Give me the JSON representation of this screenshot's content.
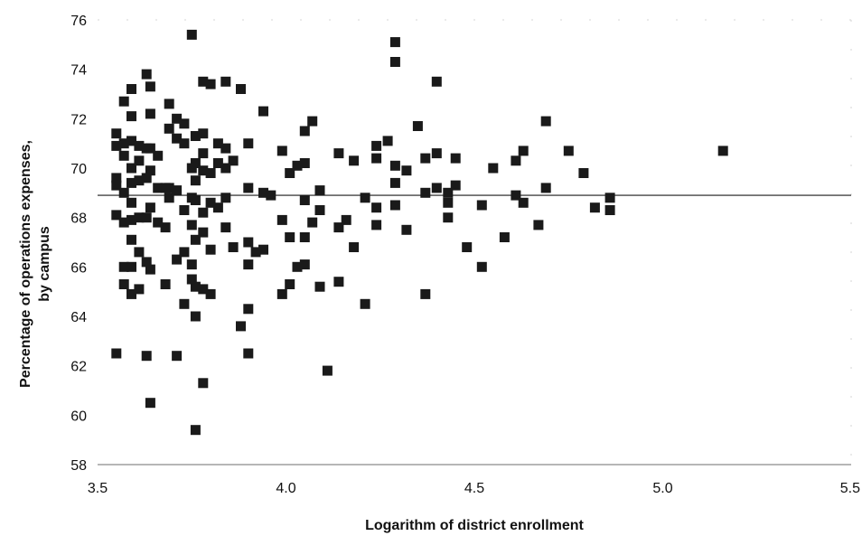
{
  "chart_data": {
    "type": "scatter",
    "title": "",
    "xlabel": "Logarithm of district enrollment",
    "ylabel_lines": [
      "Percentage of operations expenses,",
      "by campus"
    ],
    "xlim": [
      3.5,
      5.5
    ],
    "ylim": [
      58,
      76
    ],
    "x_ticks": [
      "3.5",
      "4.0",
      "4.5",
      "5.0",
      "5.5"
    ],
    "y_ticks": [
      "58",
      "60",
      "62",
      "64",
      "66",
      "68",
      "70",
      "72",
      "74",
      "76"
    ],
    "grid": false,
    "legend": "none",
    "marker_color": "#1a1a1a",
    "reference_line": {
      "y": 68.9,
      "color": "#1a1a1a"
    },
    "points": [
      [
        3.55,
        71.4
      ],
      [
        3.55,
        70.9
      ],
      [
        3.55,
        69.6
      ],
      [
        3.55,
        69.3
      ],
      [
        3.55,
        68.1
      ],
      [
        3.55,
        62.5
      ],
      [
        3.57,
        72.7
      ],
      [
        3.57,
        71.0
      ],
      [
        3.57,
        70.5
      ],
      [
        3.57,
        69.0
      ],
      [
        3.57,
        67.8
      ],
      [
        3.57,
        66.0
      ],
      [
        3.57,
        65.3
      ],
      [
        3.59,
        73.2
      ],
      [
        3.59,
        72.1
      ],
      [
        3.59,
        71.1
      ],
      [
        3.59,
        70.0
      ],
      [
        3.59,
        69.4
      ],
      [
        3.59,
        68.6
      ],
      [
        3.59,
        67.9
      ],
      [
        3.59,
        67.1
      ],
      [
        3.59,
        66.0
      ],
      [
        3.59,
        64.9
      ],
      [
        3.61,
        70.9
      ],
      [
        3.61,
        70.3
      ],
      [
        3.61,
        69.5
      ],
      [
        3.61,
        68.0
      ],
      [
        3.61,
        66.6
      ],
      [
        3.61,
        65.1
      ],
      [
        3.63,
        73.8
      ],
      [
        3.63,
        70.8
      ],
      [
        3.63,
        69.6
      ],
      [
        3.63,
        68.0
      ],
      [
        3.63,
        66.2
      ],
      [
        3.63,
        62.4
      ],
      [
        3.64,
        73.3
      ],
      [
        3.64,
        72.2
      ],
      [
        3.64,
        70.8
      ],
      [
        3.64,
        69.9
      ],
      [
        3.64,
        68.4
      ],
      [
        3.64,
        65.9
      ],
      [
        3.64,
        60.5
      ],
      [
        3.66,
        70.5
      ],
      [
        3.66,
        69.2
      ],
      [
        3.66,
        67.8
      ],
      [
        3.68,
        69.2
      ],
      [
        3.68,
        67.6
      ],
      [
        3.68,
        65.3
      ],
      [
        3.69,
        72.6
      ],
      [
        3.69,
        71.6
      ],
      [
        3.69,
        69.2
      ],
      [
        3.69,
        68.8
      ],
      [
        3.71,
        72.0
      ],
      [
        3.71,
        71.2
      ],
      [
        3.71,
        69.1
      ],
      [
        3.71,
        66.3
      ],
      [
        3.71,
        62.4
      ],
      [
        3.73,
        71.8
      ],
      [
        3.73,
        71.0
      ],
      [
        3.73,
        68.3
      ],
      [
        3.73,
        66.6
      ],
      [
        3.73,
        64.5
      ],
      [
        3.75,
        75.4
      ],
      [
        3.75,
        70.0
      ],
      [
        3.75,
        68.8
      ],
      [
        3.75,
        67.7
      ],
      [
        3.75,
        66.1
      ],
      [
        3.75,
        65.5
      ],
      [
        3.76,
        71.3
      ],
      [
        3.76,
        70.2
      ],
      [
        3.76,
        69.5
      ],
      [
        3.76,
        68.7
      ],
      [
        3.76,
        67.1
      ],
      [
        3.76,
        65.2
      ],
      [
        3.76,
        64.0
      ],
      [
        3.76,
        59.4
      ],
      [
        3.78,
        73.5
      ],
      [
        3.78,
        71.4
      ],
      [
        3.78,
        70.6
      ],
      [
        3.78,
        69.9
      ],
      [
        3.78,
        68.2
      ],
      [
        3.78,
        67.4
      ],
      [
        3.78,
        65.1
      ],
      [
        3.78,
        61.3
      ],
      [
        3.8,
        73.4
      ],
      [
        3.8,
        69.8
      ],
      [
        3.8,
        68.6
      ],
      [
        3.8,
        66.7
      ],
      [
        3.8,
        64.9
      ],
      [
        3.82,
        71.0
      ],
      [
        3.82,
        70.2
      ],
      [
        3.82,
        68.4
      ],
      [
        3.84,
        73.5
      ],
      [
        3.84,
        70.8
      ],
      [
        3.84,
        70.0
      ],
      [
        3.84,
        68.8
      ],
      [
        3.84,
        67.6
      ],
      [
        3.86,
        70.3
      ],
      [
        3.86,
        66.8
      ],
      [
        3.88,
        73.2
      ],
      [
        3.88,
        63.6
      ],
      [
        3.9,
        71.0
      ],
      [
        3.9,
        69.2
      ],
      [
        3.9,
        67.0
      ],
      [
        3.9,
        66.1
      ],
      [
        3.9,
        64.3
      ],
      [
        3.9,
        62.5
      ],
      [
        3.92,
        66.6
      ],
      [
        3.94,
        72.3
      ],
      [
        3.94,
        69.0
      ],
      [
        3.94,
        66.7
      ],
      [
        3.96,
        68.9
      ],
      [
        3.99,
        70.7
      ],
      [
        3.99,
        67.9
      ],
      [
        3.99,
        64.9
      ],
      [
        4.01,
        69.8
      ],
      [
        4.01,
        67.2
      ],
      [
        4.01,
        65.3
      ],
      [
        4.03,
        70.1
      ],
      [
        4.03,
        66.0
      ],
      [
        4.05,
        71.5
      ],
      [
        4.05,
        70.2
      ],
      [
        4.05,
        68.7
      ],
      [
        4.05,
        67.2
      ],
      [
        4.05,
        66.1
      ],
      [
        4.07,
        71.9
      ],
      [
        4.07,
        67.8
      ],
      [
        4.09,
        69.1
      ],
      [
        4.09,
        68.3
      ],
      [
        4.09,
        65.2
      ],
      [
        4.11,
        61.8
      ],
      [
        4.14,
        70.6
      ],
      [
        4.14,
        67.6
      ],
      [
        4.14,
        65.4
      ],
      [
        4.16,
        67.9
      ],
      [
        4.18,
        70.3
      ],
      [
        4.18,
        66.8
      ],
      [
        4.21,
        68.8
      ],
      [
        4.21,
        64.5
      ],
      [
        4.24,
        70.9
      ],
      [
        4.24,
        70.4
      ],
      [
        4.24,
        68.4
      ],
      [
        4.24,
        67.7
      ],
      [
        4.27,
        71.1
      ],
      [
        4.29,
        75.1
      ],
      [
        4.29,
        74.3
      ],
      [
        4.29,
        70.1
      ],
      [
        4.29,
        69.4
      ],
      [
        4.29,
        68.5
      ],
      [
        4.32,
        69.9
      ],
      [
        4.32,
        67.5
      ],
      [
        4.35,
        71.7
      ],
      [
        4.37,
        70.4
      ],
      [
        4.37,
        69.0
      ],
      [
        4.37,
        64.9
      ],
      [
        4.4,
        73.5
      ],
      [
        4.4,
        70.6
      ],
      [
        4.4,
        69.2
      ],
      [
        4.43,
        69.0
      ],
      [
        4.43,
        68.6
      ],
      [
        4.43,
        68.0
      ],
      [
        4.45,
        70.4
      ],
      [
        4.45,
        69.3
      ],
      [
        4.48,
        66.8
      ],
      [
        4.52,
        68.5
      ],
      [
        4.52,
        66.0
      ],
      [
        4.55,
        70.0
      ],
      [
        4.58,
        67.2
      ],
      [
        4.61,
        70.3
      ],
      [
        4.61,
        68.9
      ],
      [
        4.63,
        70.7
      ],
      [
        4.63,
        68.6
      ],
      [
        4.67,
        67.7
      ],
      [
        4.69,
        71.9
      ],
      [
        4.69,
        69.2
      ],
      [
        4.75,
        70.7
      ],
      [
        4.79,
        69.8
      ],
      [
        4.82,
        68.4
      ],
      [
        4.86,
        68.8
      ],
      [
        4.86,
        68.3
      ],
      [
        5.16,
        70.7
      ]
    ]
  }
}
